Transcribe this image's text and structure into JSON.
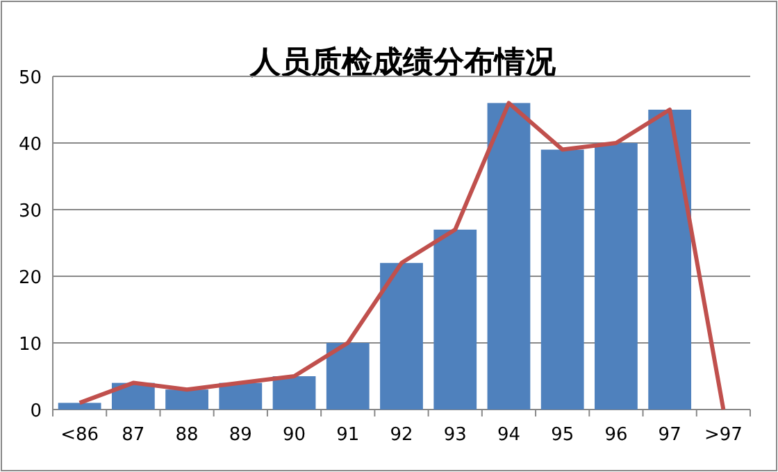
{
  "chart_data": {
    "type": "bar",
    "title": "人员质检成绩分布情况",
    "categories": [
      "<86",
      "87",
      "88",
      "89",
      "90",
      "91",
      "92",
      "93",
      "94",
      "95",
      "96",
      "97",
      ">97"
    ],
    "series": [
      {
        "color": "#4f81bd",
        "values": [
          1,
          4,
          3,
          4,
          5,
          10,
          22,
          27,
          46,
          39,
          40,
          45,
          0
        ]
      },
      {
        "type": "line",
        "color": "#c0504d",
        "values": [
          1,
          4,
          3,
          4,
          5,
          10,
          22,
          27,
          46,
          39,
          40,
          45,
          0
        ]
      }
    ],
    "ylim": [
      0,
      50
    ],
    "yticks": [
      0,
      10,
      20,
      30,
      40,
      50
    ],
    "grid": "y"
  }
}
